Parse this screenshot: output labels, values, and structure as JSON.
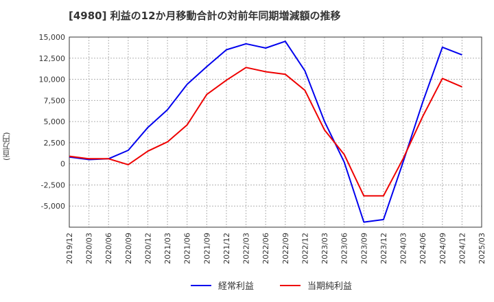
{
  "chart_data": {
    "type": "line",
    "title": "[4980]  利益の12か月移動合計の対前年同期増減額の推移",
    "ylabel": "(百万円)",
    "xlabel": "",
    "ylim": [
      -7500,
      15000
    ],
    "y_ticks": [
      15000,
      12500,
      10000,
      7500,
      5000,
      2500,
      0,
      -2500,
      -5000
    ],
    "y_tick_labels": [
      "15,000",
      "12,500",
      "10,000",
      "7,500",
      "5,000",
      "2,500",
      "0",
      "-2,500",
      "-5,000"
    ],
    "categories": [
      "2019/12",
      "2020/03",
      "2020/06",
      "2020/09",
      "2020/12",
      "2021/03",
      "2021/06",
      "2021/09",
      "2021/12",
      "2022/03",
      "2022/06",
      "2022/09",
      "2022/12",
      "2023/03",
      "2023/06",
      "2023/09",
      "2023/12",
      "2024/03",
      "2024/06",
      "2024/09",
      "2024/12",
      "2025/03"
    ],
    "series": [
      {
        "name": "経常利益",
        "color": "#0000ee",
        "values": [
          800,
          500,
          600,
          1600,
          4300,
          6400,
          9400,
          11500,
          13500,
          14200,
          13700,
          14500,
          11000,
          5000,
          200,
          -6900,
          -6600,
          200,
          7300,
          13800,
          12900,
          null
        ]
      },
      {
        "name": "当期純利益",
        "color": "#ee0000",
        "values": [
          900,
          600,
          600,
          -100,
          1500,
          2600,
          4600,
          8200,
          9900,
          11400,
          10900,
          10600,
          8700,
          4000,
          1100,
          -3800,
          -3800,
          600,
          5600,
          10100,
          9100,
          null
        ]
      }
    ],
    "grid": true,
    "legend_position": "bottom-center"
  }
}
